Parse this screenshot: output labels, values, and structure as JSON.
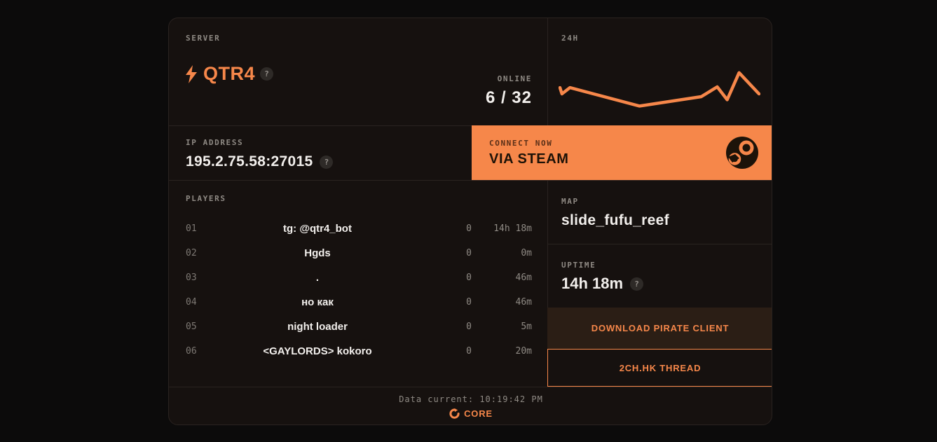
{
  "server": {
    "label": "SERVER",
    "name": "QTR4",
    "help": "?"
  },
  "online": {
    "label": "ONLINE",
    "value": "6 / 32"
  },
  "chart": {
    "label": "24H"
  },
  "chart_data": {
    "type": "line",
    "title": "24H",
    "xlabel": "time over last 24 hours (no tick labels shown)",
    "ylabel": "players online (no tick labels shown)",
    "grid": false,
    "legend": false,
    "line_color": "#f6874a",
    "point_format": "[x percent of 24h window, y percent from top of plot]",
    "points": [
      [
        0,
        43
      ],
      [
        1,
        59
      ],
      [
        5,
        43
      ],
      [
        40,
        90
      ],
      [
        71,
        66
      ],
      [
        79,
        41
      ],
      [
        84,
        74
      ],
      [
        90,
        5
      ],
      [
        100,
        59
      ]
    ]
  },
  "ip": {
    "label": "IP ADDRESS",
    "value": "195.2.75.58:27015",
    "help": "?"
  },
  "connect": {
    "label": "CONNECT NOW",
    "value": "VIA STEAM"
  },
  "players": {
    "label": "PLAYERS",
    "rows": [
      {
        "index": "01",
        "name": "tg: @qtr4_bot",
        "score": "0",
        "time": "14h 18m"
      },
      {
        "index": "02",
        "name": "Hgds",
        "score": "0",
        "time": "0m"
      },
      {
        "index": "03",
        "name": ".",
        "score": "0",
        "time": "46m"
      },
      {
        "index": "04",
        "name": "но как",
        "score": "0",
        "time": "46m"
      },
      {
        "index": "05",
        "name": "night loader",
        "score": "0",
        "time": "5m"
      },
      {
        "index": "06",
        "name": "<GAYLORDS> kokoro",
        "score": "0",
        "time": "20m"
      }
    ]
  },
  "map": {
    "label": "MAP",
    "value": "slide_fufu_reef"
  },
  "uptime": {
    "label": "UPTIME",
    "value": "14h 18m",
    "help": "?"
  },
  "buttons": {
    "download": "DOWNLOAD PIRATE CLIENT",
    "thread": "2CH.HK THREAD"
  },
  "footer": {
    "data_current": "Data current: 10:19:42 PM",
    "brand": "CORE"
  },
  "colors": {
    "accent": "#f6874a",
    "page_bg": "#0c0b0b",
    "card_bg": "#16110f",
    "button_brown": "#2b1e15",
    "text_white": "#f2efec",
    "text_gray": "#8f8a84"
  }
}
